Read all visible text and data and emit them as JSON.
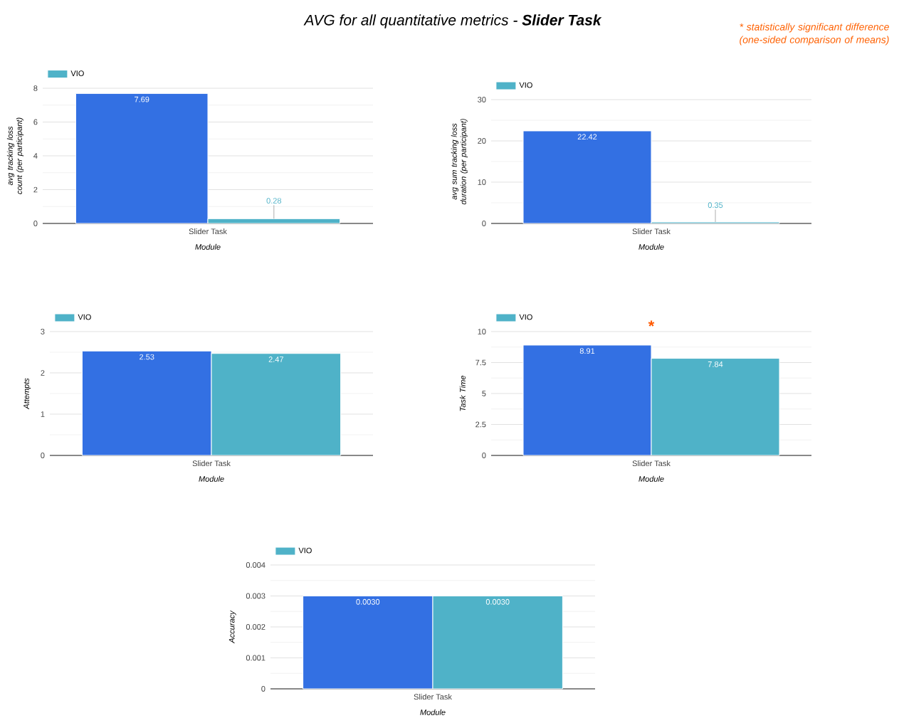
{
  "chart_data": [
    {
      "type": "other",
      "title": "AVG for all quantitative metrics - **Slider Task**",
      "annotations": [
        "* statistically significant difference (one-sided comparison of means)"
      ]
    },
    {
      "type": "bar",
      "categories": [
        "Slider Task"
      ],
      "xlabel": "Module",
      "ylabel": "avg tracking loss count (per participant)",
      "ylim": [
        0,
        8
      ],
      "yticks": [
        0,
        2,
        4,
        6,
        8
      ],
      "grid": "y",
      "legend": "top left",
      "series": [
        {
          "color": "#3370e3",
          "values": [
            7.69
          ],
          "value_labels": [
            "7.69"
          ]
        },
        {
          "name": "VIO",
          "color": "#4fb2c8",
          "values": [
            0.28
          ],
          "value_labels": [
            "0.28"
          ]
        }
      ]
    },
    {
      "type": "bar",
      "categories": [
        "Slider Task"
      ],
      "xlabel": "Module",
      "ylabel": "avg sum tracking loss duration (per participant)",
      "ylim": [
        0,
        30
      ],
      "yticks": [
        0,
        10,
        20,
        30
      ],
      "grid": "y",
      "legend": "top left",
      "series": [
        {
          "color": "#3370e3",
          "values": [
            22.42
          ],
          "value_labels": [
            "22.42"
          ]
        },
        {
          "name": "VIO",
          "color": "#4fb2c8",
          "values": [
            0.35
          ],
          "value_labels": [
            "0.35"
          ]
        }
      ]
    },
    {
      "type": "bar",
      "categories": [
        "Slider Task"
      ],
      "xlabel": "Module",
      "ylabel": "Attempts",
      "ylim": [
        0,
        3
      ],
      "yticks": [
        0,
        1,
        2,
        3
      ],
      "grid": "y",
      "legend": "top left",
      "series": [
        {
          "color": "#3370e3",
          "values": [
            2.53
          ],
          "value_labels": [
            "2.53"
          ]
        },
        {
          "name": "VIO",
          "color": "#4fb2c8",
          "values": [
            2.47
          ],
          "value_labels": [
            "2.47"
          ]
        }
      ]
    },
    {
      "type": "bar",
      "categories": [
        "Slider Task"
      ],
      "xlabel": "Module",
      "ylabel": "Task Time",
      "ylim": [
        0,
        10
      ],
      "yticks": [
        0,
        2.5,
        5,
        7.5,
        10
      ],
      "grid": "y",
      "legend": "top left",
      "annotations": [
        "*"
      ],
      "series": [
        {
          "color": "#3370e3",
          "values": [
            8.91
          ],
          "value_labels": [
            "8.91"
          ]
        },
        {
          "name": "VIO",
          "color": "#4fb2c8",
          "values": [
            7.84
          ],
          "value_labels": [
            "7.84"
          ]
        }
      ]
    },
    {
      "type": "bar",
      "categories": [
        "Slider Task"
      ],
      "xlabel": "Module",
      "ylabel": "Accuracy",
      "ylim": [
        0,
        0.004
      ],
      "yticks": [
        0,
        0.001,
        0.002,
        0.003,
        0.004
      ],
      "grid": "y",
      "legend": "top left",
      "series": [
        {
          "color": "#3370e3",
          "values": [
            0.003
          ],
          "value_labels": [
            "0.0030"
          ]
        },
        {
          "name": "VIO",
          "color": "#4fb2c8",
          "values": [
            0.003
          ],
          "value_labels": [
            "0.0030"
          ]
        }
      ]
    }
  ]
}
